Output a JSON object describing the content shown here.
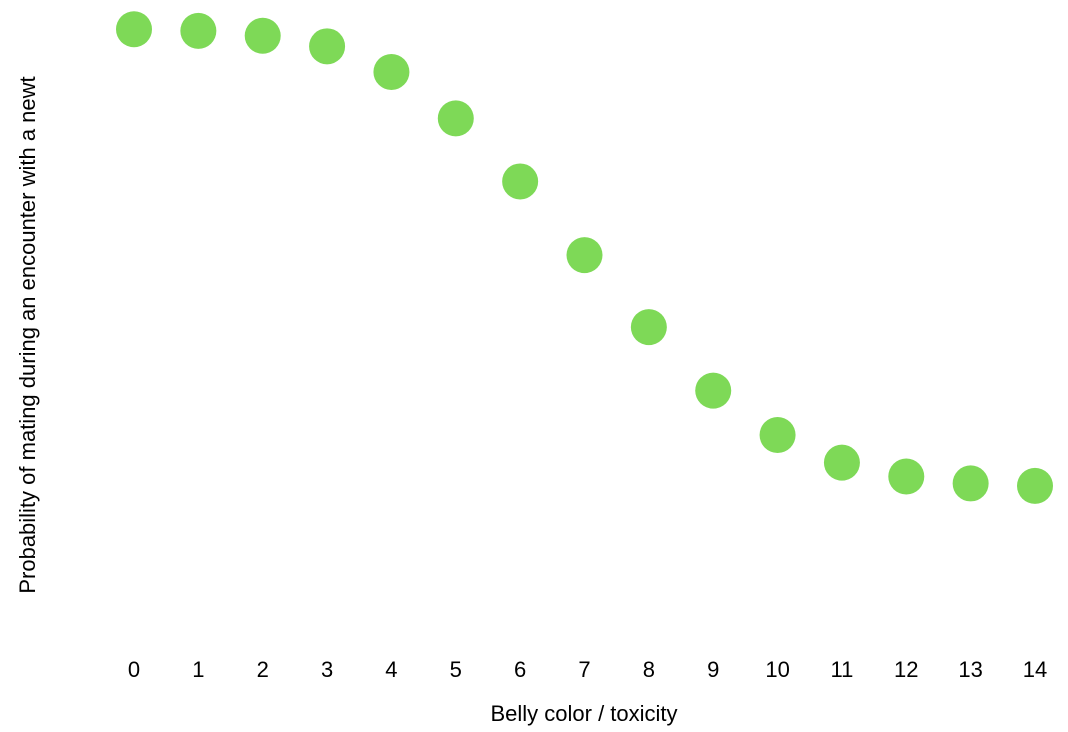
{
  "chart_data": {
    "type": "scatter",
    "xlabel": "Belly color / toxicity",
    "ylabel": "Probability of mating during an encounter with a newt",
    "x": [
      0,
      1,
      2,
      3,
      4,
      5,
      6,
      7,
      8,
      9,
      10,
      11,
      12,
      13,
      14
    ],
    "y": [
      0.997,
      0.993,
      0.981,
      0.955,
      0.892,
      0.778,
      0.623,
      0.442,
      0.265,
      0.109,
      0.0,
      -0.068,
      -0.102,
      -0.119,
      -0.125
    ],
    "xticks": [
      "0",
      "1",
      "2",
      "3",
      "4",
      "5",
      "6",
      "7",
      "8",
      "9",
      "10",
      "11",
      "12",
      "13",
      "14"
    ],
    "xlim": [
      0,
      14
    ],
    "grid": false,
    "point_color": "#7ed957"
  }
}
